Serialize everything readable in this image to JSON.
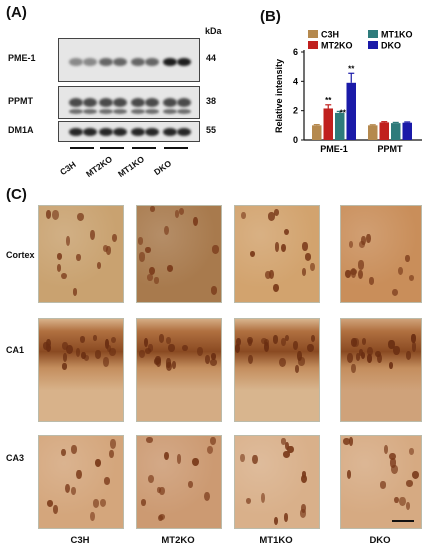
{
  "panel_a": {
    "label": "(A)",
    "kda_unit": "kDa",
    "blots": [
      {
        "name": "PME-1",
        "kda": "44",
        "intensity": [
          0.35,
          0.55,
          0.55,
          0.95
        ]
      },
      {
        "name": "PPMT",
        "kda": "38",
        "intensity": [
          0.7,
          0.7,
          0.7,
          0.7
        ]
      },
      {
        "name": "DM1A",
        "kda": "55",
        "intensity": [
          0.9,
          0.9,
          0.9,
          0.9
        ]
      }
    ],
    "lanes": [
      "C3H",
      "MT2KO",
      "MT1KO",
      "DKO"
    ]
  },
  "panel_b": {
    "label": "(B)"
  },
  "chart_data": {
    "type": "bar",
    "categories": [
      "PME-1",
      "PPMT"
    ],
    "series": [
      {
        "name": "C3H",
        "color": "#b5894e",
        "values": [
          1.0,
          1.0
        ],
        "errors": [
          0.05,
          0.04
        ],
        "stars": [
          "",
          ""
        ]
      },
      {
        "name": "MT2KO",
        "color": "#c0201e",
        "values": [
          2.15,
          1.2
        ],
        "errors": [
          0.25,
          0.05
        ],
        "stars": [
          "**",
          ""
        ]
      },
      {
        "name": "MT1KO",
        "color": "#2e7b7b",
        "values": [
          1.85,
          1.15
        ],
        "errors": [
          0.1,
          0.05
        ],
        "stars": [
          "**",
          ""
        ]
      },
      {
        "name": "DKO",
        "color": "#1a1aa8",
        "values": [
          3.9,
          1.18
        ],
        "errors": [
          0.65,
          0.05
        ],
        "stars": [
          "**",
          ""
        ]
      }
    ],
    "ylabel": "Relative intensity",
    "ylim": [
      0,
      6
    ],
    "yticks": [
      0,
      2,
      4,
      6
    ],
    "legend_position": "top"
  },
  "panel_c": {
    "label": "(C)",
    "rows": [
      "Cortex",
      "CA1",
      "CA3"
    ],
    "columns": [
      "C3H",
      "MT2KO",
      "MT1KO",
      "DKO"
    ]
  }
}
